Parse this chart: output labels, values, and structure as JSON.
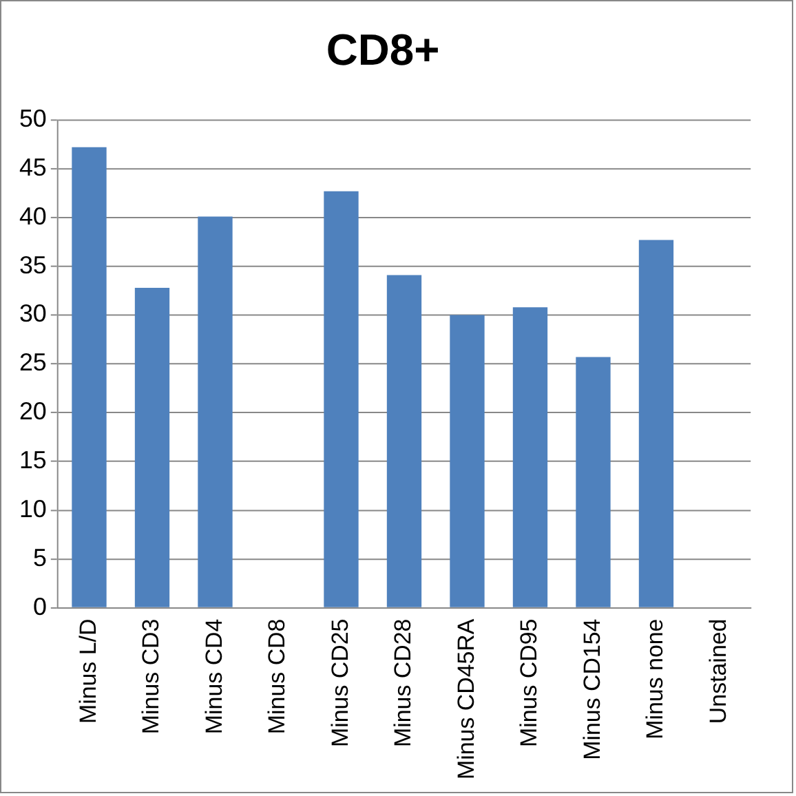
{
  "chart_data": {
    "type": "bar",
    "title": "CD8+",
    "categories": [
      "Minus L/D",
      "Minus CD3",
      "Minus CD4",
      "Minus CD8",
      "Minus CD25",
      "Minus CD28",
      "Minus CD45RA",
      "Minus CD95",
      "Minus CD154",
      "Minus none",
      "Unstained"
    ],
    "values": [
      47.2,
      32.8,
      40.1,
      0,
      42.7,
      34.1,
      30.0,
      30.8,
      25.7,
      37.7,
      0
    ],
    "color": "#4f81bd",
    "ylim": [
      0,
      50
    ],
    "yticks": [
      0,
      5,
      10,
      15,
      20,
      25,
      30,
      35,
      40,
      45,
      50
    ],
    "grid": "y",
    "legend": false
  }
}
